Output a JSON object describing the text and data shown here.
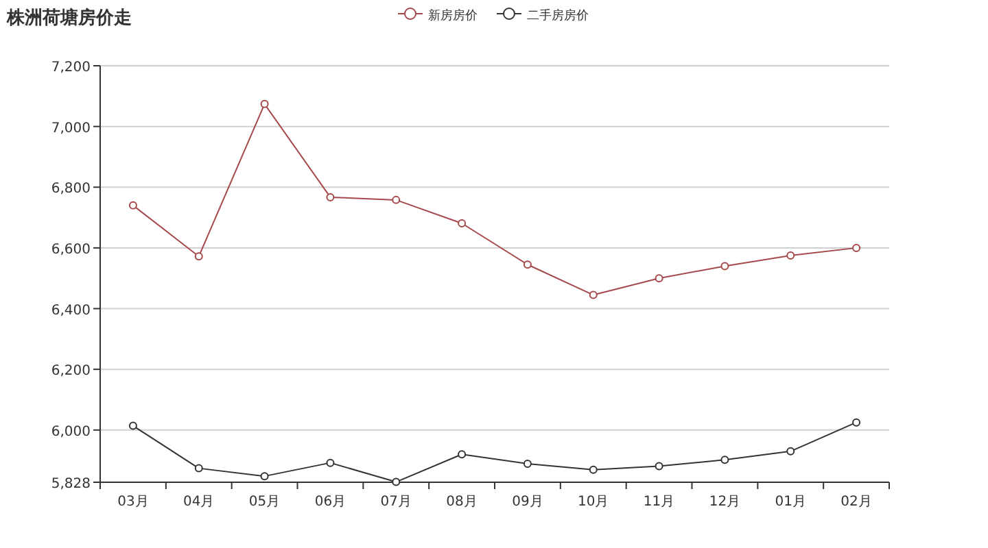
{
  "chart_data": {
    "type": "line",
    "title": "株洲荷塘房价走",
    "categories": [
      "03月",
      "04月",
      "05月",
      "06月",
      "07月",
      "08月",
      "09月",
      "10月",
      "11月",
      "12月",
      "01月",
      "02月"
    ],
    "series": [
      {
        "name": "新房房价",
        "color": "#a5484b",
        "values": [
          6740,
          6572,
          7074,
          6767,
          6758,
          6681,
          6545,
          6445,
          6500,
          6540,
          6575,
          6600
        ]
      },
      {
        "name": "二手房房价",
        "color": "#333333",
        "values": [
          6014,
          5874,
          5848,
          5892,
          5829,
          5920,
          5889,
          5869,
          5881,
          5902,
          5930,
          6025
        ]
      }
    ],
    "ylim": [
      5828,
      7200
    ],
    "yticks": [
      {
        "value": 5828,
        "label": "5,828"
      },
      {
        "value": 6000,
        "label": "6,000"
      },
      {
        "value": 6200,
        "label": "6,200"
      },
      {
        "value": 6400,
        "label": "6,400"
      },
      {
        "value": 6600,
        "label": "6,600"
      },
      {
        "value": 6800,
        "label": "6,800"
      },
      {
        "value": 7000,
        "label": "7,000"
      },
      {
        "value": 7200,
        "label": "7,200"
      }
    ],
    "grid": "y",
    "legend": "top",
    "marker": "circle",
    "line_style": "solid"
  }
}
